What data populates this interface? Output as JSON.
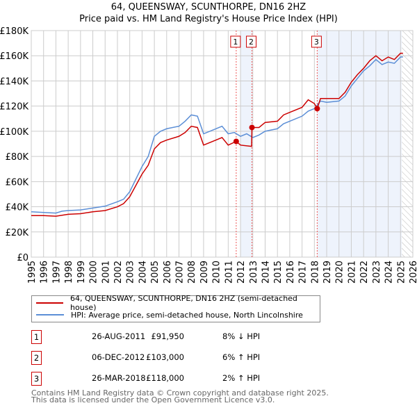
{
  "chart_data": {
    "type": "line",
    "title": "64, QUEENSWAY, SCUNTHORPE, DN16 2HZ",
    "subtitle": "Price paid vs. HM Land Registry's House Price Index (HPI)",
    "xlim": [
      1995,
      2026
    ],
    "ylim": [
      0,
      180000
    ],
    "y_ticks": [
      "£0",
      "£20K",
      "£40K",
      "£60K",
      "£80K",
      "£100K",
      "£120K",
      "£140K",
      "£160K",
      "£180K"
    ],
    "x_ticks": [
      "1995",
      "1996",
      "1997",
      "1998",
      "1999",
      "2000",
      "2001",
      "2002",
      "2003",
      "2004",
      "2005",
      "2006",
      "2007",
      "2008",
      "2009",
      "2010",
      "2011",
      "2012",
      "2013",
      "2014",
      "2015",
      "2016",
      "2017",
      "2018",
      "2019",
      "2020",
      "2021",
      "2022",
      "2023",
      "2024",
      "2025",
      "2026"
    ],
    "grid": true,
    "series": [
      {
        "name": "64, QUEENSWAY, SCUNTHORPE, DN16 2HZ (semi-detached house)",
        "color": "#cc0000",
        "x": [
          1995,
          1996,
          1997,
          1998,
          1999,
          2000,
          2001,
          2002,
          2002.5,
          2003,
          2003.5,
          2004,
          2004.5,
          2005,
          2005.5,
          2006,
          2007,
          2007.5,
          2008,
          2008.5,
          2009,
          2009.5,
          2010,
          2010.5,
          2011,
          2011.65,
          2012,
          2012.9,
          2012.93,
          2013.5,
          2014,
          2015,
          2015.5,
          2016,
          2017,
          2017.5,
          2018,
          2018.23,
          2018.5,
          2019,
          2020,
          2020.5,
          2021,
          2021.5,
          2022,
          2022.5,
          2023,
          2023.5,
          2024,
          2024.5,
          2025,
          2025.2
        ],
        "y": [
          33,
          33,
          32.5,
          34,
          34.5,
          36,
          37,
          40,
          42.5,
          48,
          57,
          66,
          73,
          86,
          91,
          93,
          96,
          99,
          104,
          103,
          89,
          91,
          93,
          95,
          89,
          91.95,
          89,
          88,
          103,
          103,
          107,
          108,
          113,
          115,
          119,
          125,
          122,
          118,
          126,
          126,
          126,
          131,
          139,
          145,
          150,
          156,
          160,
          156,
          159,
          157,
          162,
          162
        ]
      },
      {
        "name": "HPI: Average price, semi-detached house, North Lincolnshire",
        "color": "#5b8ed6",
        "x": [
          1995,
          1996,
          1997,
          1997.5,
          1998,
          1999,
          2000,
          2001,
          2002,
          2002.5,
          2003,
          2003.5,
          2004,
          2004.5,
          2005,
          2005.5,
          2006,
          2007,
          2007.5,
          2008,
          2008.5,
          2009,
          2009.5,
          2010,
          2010.5,
          2011,
          2011.5,
          2012,
          2012.5,
          2013,
          2013.5,
          2014,
          2015,
          2015.5,
          2016,
          2017,
          2017.5,
          2018,
          2018.5,
          2019,
          2020,
          2020.5,
          2021,
          2021.5,
          2022,
          2022.5,
          2023,
          2023.5,
          2024,
          2024.5,
          2025,
          2025.2
        ],
        "y": [
          36,
          35.5,
          35,
          36.5,
          37,
          37.5,
          39,
          40.5,
          44,
          46,
          52,
          62,
          72,
          80,
          96,
          100,
          102,
          104,
          108,
          113,
          112,
          98,
          100,
          102,
          104,
          98,
          99,
          96,
          98,
          95,
          97,
          100,
          102,
          106,
          108,
          112,
          116,
          118,
          124,
          123,
          124,
          128,
          136,
          142,
          148,
          152,
          157,
          153,
          155,
          154,
          159,
          159
        ]
      }
    ],
    "y_units": "thousands GBP",
    "sales": [
      {
        "num": "1",
        "date": "26-AUG-2011",
        "price": "£91,950",
        "hpi": "8% ↓ HPI",
        "x": 2011.65,
        "y": 91.95
      },
      {
        "num": "2",
        "date": "06-DEC-2012",
        "price": "£103,000",
        "hpi": "6% ↑ HPI",
        "x": 2012.93,
        "y": 103
      },
      {
        "num": "3",
        "date": "26-MAR-2018",
        "price": "£118,000",
        "hpi": "2% ↑ HPI",
        "x": 2018.23,
        "y": 118
      }
    ],
    "shaded": [
      [
        2012.0,
        2012.93
      ],
      [
        2018.23,
        2025.1
      ]
    ],
    "forecast_from": 2025.1
  },
  "footer": {
    "line1": "Contains HM Land Registry data © Crown copyright and database right 2025.",
    "line2": "This data is licensed under the Open Government Licence v3.0."
  }
}
